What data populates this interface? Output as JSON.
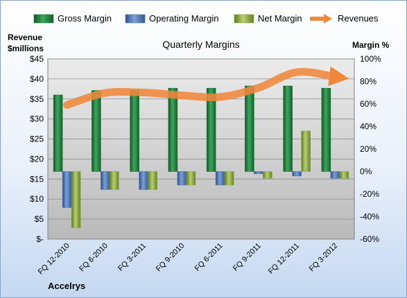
{
  "chart_data": {
    "type": "bar",
    "title": "Quarterly Margins",
    "company": "Accelrys",
    "ylabel_left": [
      "Revenue",
      "$millions"
    ],
    "ylabel_right": "Margin %",
    "categories": [
      "FQ 12-2010",
      "FQ 6-2010",
      "FQ 3-2011",
      "FQ 9-2010",
      "FQ 6-2011",
      "FQ 9-2011",
      "FQ 12-2011",
      "FQ 3-2012"
    ],
    "series": [
      {
        "name": "Gross Margin",
        "axis": "right",
        "color": "#1f7a3a",
        "values": [
          68,
          72,
          72,
          74,
          74,
          76,
          76,
          74
        ]
      },
      {
        "name": "Operating Margin",
        "axis": "right",
        "color": "#4c74b5",
        "values": [
          -32,
          -16,
          -16,
          -12,
          -12,
          -2,
          -4,
          -6
        ]
      },
      {
        "name": "Net Margin",
        "axis": "right",
        "color": "#8aa83f",
        "values": [
          -50,
          -16,
          -16,
          -12,
          -12,
          -6,
          36,
          -6
        ]
      },
      {
        "name": "Revenues",
        "axis": "left",
        "type": "line",
        "color": "#f0883c",
        "values": [
          33.5,
          36.5,
          36.6,
          35.9,
          35.5,
          37.8,
          41.7,
          40.5
        ]
      }
    ],
    "left_axis": {
      "min": 0,
      "max": 45,
      "step": 5,
      "tick_labels": [
        "$-",
        "$5",
        "$10",
        "$15",
        "$20",
        "$25",
        "$30",
        "$35",
        "$40",
        "$45"
      ]
    },
    "right_axis": {
      "min": -60,
      "max": 100,
      "step": 20,
      "tick_labels": [
        "-60%",
        "-40%",
        "-20%",
        "0%",
        "20%",
        "40%",
        "60%",
        "80%",
        "100%"
      ]
    },
    "legend": {
      "placement": "top"
    },
    "grid": true
  }
}
